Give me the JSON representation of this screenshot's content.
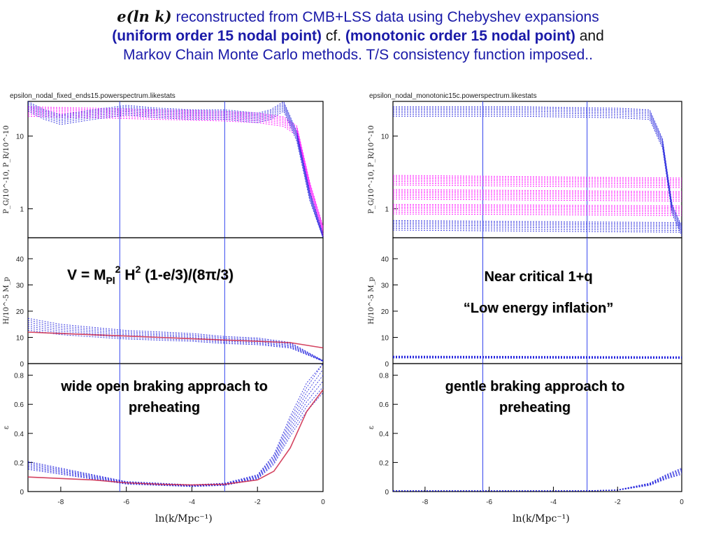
{
  "title": {
    "line1_symbol": "e(ln k)",
    "line1_rest": " reconstructed from CMB+LSS data using Chebyshev expansions",
    "line2_a": "(uniform order 15 nodal point)",
    "line2_cf": " cf. ",
    "line2_b": "(monotonic order 15 nodal point)",
    "line2_and": " and",
    "line3": "Markov Chain Monte Carlo methods. T/S consistency function imposed.."
  },
  "left_panel_title": "epsilon_nodal_fixed_ends15.powerspectrum.likestats",
  "right_panel_title": "epsilon_nodal_monotonic15c.powerspectrum.likestats",
  "annotations": {
    "formula": "V =  M",
    "formula_sub": "Pl",
    "formula_sup": "2",
    "formula_mid": " H",
    "formula_sup2": "2",
    "formula_end": " (1-e/3)/(8π/3)",
    "near_critical": "Near critical 1+q",
    "low_energy": "“Low energy inflation”",
    "wide_open": "wide open braking approach to preheating",
    "gentle": "gentle braking approach to preheating"
  },
  "axes": {
    "y_power_label": "P_G/10^-10, P_R/10^-10",
    "y_hubble_label": "H/10^-5 M_p",
    "y_eps_label": "ε",
    "x_label": "ln(k/Mpc⁻¹)"
  },
  "chart_data": [
    {
      "type": "line",
      "panel": "left-top",
      "yscale": "log",
      "xlim": [
        -9,
        0
      ],
      "ylim": [
        0.4,
        30
      ],
      "yticks": [
        "10",
        "1"
      ],
      "vlines": [
        -6.2,
        -3.0
      ],
      "series": [
        {
          "color": "#ff00ff",
          "x": [
            -9,
            -8,
            -7,
            -6,
            -5,
            -4,
            -3,
            -2,
            -1.2,
            -0.8,
            -0.4,
            0
          ],
          "values": [
            22,
            21.5,
            21,
            20.5,
            20,
            19.5,
            19,
            18,
            16,
            12,
            2,
            0.5
          ]
        },
        {
          "color": "#2222dd",
          "x": [
            -9,
            -8.5,
            -8,
            -7,
            -6,
            -5,
            -4,
            -3,
            -2,
            -1.6,
            -1.2,
            -0.8,
            -0.4,
            0
          ],
          "values": [
            26,
            20,
            17,
            20,
            23,
            21,
            20,
            20,
            18,
            20,
            26,
            10,
            1.5,
            0.4
          ]
        }
      ]
    },
    {
      "type": "line",
      "panel": "left-mid",
      "xlim": [
        -9,
        0
      ],
      "ylim": [
        0,
        48
      ],
      "yticks": [
        "40",
        "30",
        "20",
        "10",
        "0"
      ],
      "vlines": [
        -6.2,
        -3.0
      ],
      "series": [
        {
          "color": "#2222dd",
          "x": [
            -9,
            -8,
            -7,
            -6,
            -5,
            -4,
            -3,
            -2,
            -1,
            -0.5,
            0
          ],
          "values": [
            15,
            13,
            12,
            11,
            10.5,
            10,
            9,
            8.5,
            7,
            4,
            1
          ]
        },
        {
          "color": "#cc2244",
          "x": [
            -9,
            -8,
            -7,
            -6,
            -5,
            -4,
            -3,
            -2,
            -1,
            0
          ],
          "values": [
            12,
            11.5,
            11,
            10.5,
            10,
            9.5,
            9,
            8.5,
            8,
            6
          ]
        }
      ]
    },
    {
      "type": "line",
      "panel": "left-bottom",
      "xlim": [
        -9,
        0
      ],
      "ylim": [
        0,
        0.88
      ],
      "yticks": [
        "0.8",
        "0.6",
        "0.4",
        "0.2",
        "0"
      ],
      "vlines": [
        -6.2,
        -3.0
      ],
      "series": [
        {
          "color": "#2222dd",
          "x": [
            -9,
            -8,
            -7,
            -6,
            -5,
            -4,
            -3,
            -2,
            -1.5,
            -1,
            -0.5,
            0
          ],
          "values": [
            0.18,
            0.14,
            0.1,
            0.06,
            0.05,
            0.04,
            0.05,
            0.1,
            0.22,
            0.45,
            0.65,
            0.8
          ]
        },
        {
          "color": "#cc2244",
          "x": [
            -9,
            -8,
            -7,
            -6,
            -5,
            -4,
            -3,
            -2,
            -1.5,
            -1,
            -0.5,
            0
          ],
          "values": [
            0.1,
            0.09,
            0.08,
            0.06,
            0.05,
            0.045,
            0.05,
            0.08,
            0.14,
            0.3,
            0.55,
            0.7
          ]
        }
      ]
    },
    {
      "type": "line",
      "panel": "right-top",
      "yscale": "log",
      "xlim": [
        -9,
        0
      ],
      "ylim": [
        0.4,
        30
      ],
      "yticks": [
        "10",
        "1"
      ],
      "vlines": [
        -6.2,
        -2.95
      ],
      "series": [
        {
          "color": "#ff00ff",
          "x": [
            -9,
            -4.5,
            0
          ],
          "values": [
            2.5,
            2.4,
            2.3
          ]
        },
        {
          "color": "#ff00ff",
          "x": [
            -9,
            -4.5,
            0
          ],
          "values": [
            1.6,
            1.55,
            1.5
          ]
        },
        {
          "color": "#ff00ff",
          "x": [
            -9,
            -4.5,
            0
          ],
          "values": [
            1.0,
            0.98,
            0.95
          ]
        },
        {
          "color": "#2222dd",
          "x": [
            -9,
            -5,
            -2,
            -1,
            -0.6,
            -0.3,
            0
          ],
          "values": [
            22,
            22,
            21,
            20,
            8,
            1,
            0.5
          ]
        },
        {
          "color": "#2222dd",
          "x": [
            -9,
            -4.5,
            0
          ],
          "values": [
            0.6,
            0.58,
            0.56
          ]
        }
      ]
    },
    {
      "type": "line",
      "panel": "right-mid",
      "xlim": [
        -9,
        0
      ],
      "ylim": [
        0,
        48
      ],
      "yticks": [
        "40",
        "30",
        "20",
        "10",
        "0"
      ],
      "vlines": [
        -6.2,
        -2.95
      ],
      "series": [
        {
          "color": "#2222dd",
          "x": [
            -9,
            -4.5,
            0
          ],
          "values": [
            2.5,
            2.4,
            2.3
          ]
        }
      ]
    },
    {
      "type": "line",
      "panel": "right-bottom",
      "xlim": [
        -9,
        0
      ],
      "ylim": [
        0,
        0.88
      ],
      "yticks": [
        "0.8",
        "0.6",
        "0.4",
        "0.2",
        "0"
      ],
      "vlines": [
        -6.2,
        -2.95
      ],
      "series": [
        {
          "color": "#2222dd",
          "x": [
            -9,
            -3,
            -2,
            -1,
            -0.5,
            0
          ],
          "values": [
            0.005,
            0.005,
            0.01,
            0.05,
            0.1,
            0.14
          ]
        }
      ]
    }
  ],
  "xticks": [
    "-8",
    "-6",
    "-4",
    "-2",
    "0"
  ]
}
